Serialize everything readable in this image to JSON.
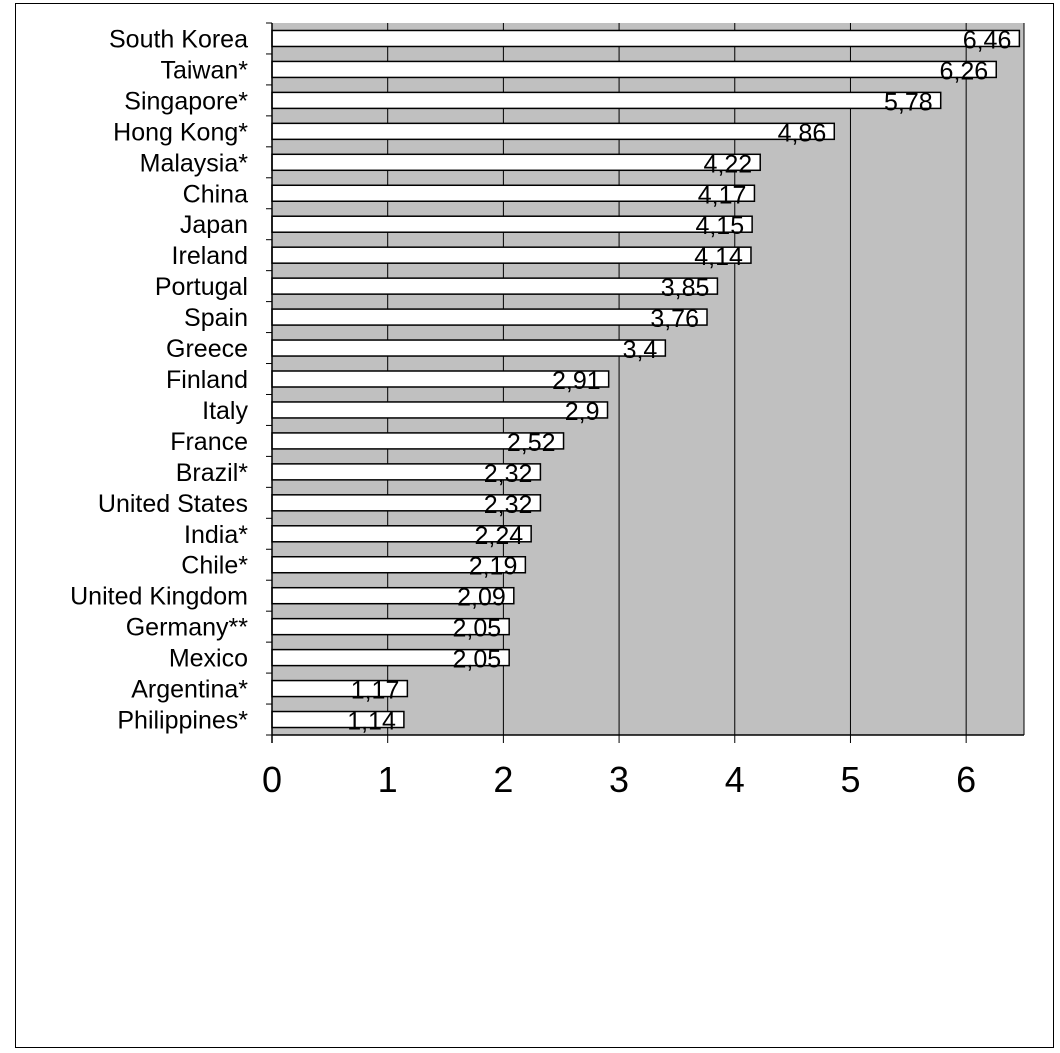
{
  "chart_data": {
    "type": "bar",
    "orientation": "horizontal",
    "categories": [
      "South Korea",
      "Taiwan*",
      "Singapore*",
      "Hong Kong*",
      "Malaysia*",
      "China",
      "Japan",
      "Ireland",
      "Portugal",
      "Spain",
      "Greece",
      "Finland",
      "Italy",
      "France",
      "Brazil*",
      "United States",
      "India*",
      "Chile*",
      "United Kingdom",
      "Germany**",
      "Mexico",
      "Argentina*",
      "Philippines*"
    ],
    "values": [
      6.46,
      6.26,
      5.78,
      4.86,
      4.22,
      4.17,
      4.15,
      4.14,
      3.85,
      3.76,
      3.4,
      2.91,
      2.9,
      2.52,
      2.32,
      2.32,
      2.24,
      2.19,
      2.09,
      2.05,
      2.05,
      1.17,
      1.14
    ],
    "data_labels": [
      "6,46",
      "6,26",
      "5,78",
      "4,86",
      "4,22",
      "4,17",
      "4,15",
      "4,14",
      "3,85",
      "3,76",
      "3,4",
      "2,91",
      "2,9",
      "2,52",
      "2,32",
      "2,32",
      "2,24",
      "2,19",
      "2,09",
      "2,05",
      "2,05",
      "1,17",
      "1,14"
    ],
    "x_ticks": [
      "0",
      "1",
      "2",
      "3",
      "4",
      "5",
      "6"
    ],
    "xlim": [
      0,
      6.5
    ],
    "title": "",
    "xlabel": "",
    "ylabel": "",
    "grid": true,
    "colors": {
      "plot_background": "#c0c0c0",
      "bar_fill": "#ffffff",
      "bar_stroke": "#000000",
      "gridline": "#000000"
    }
  }
}
